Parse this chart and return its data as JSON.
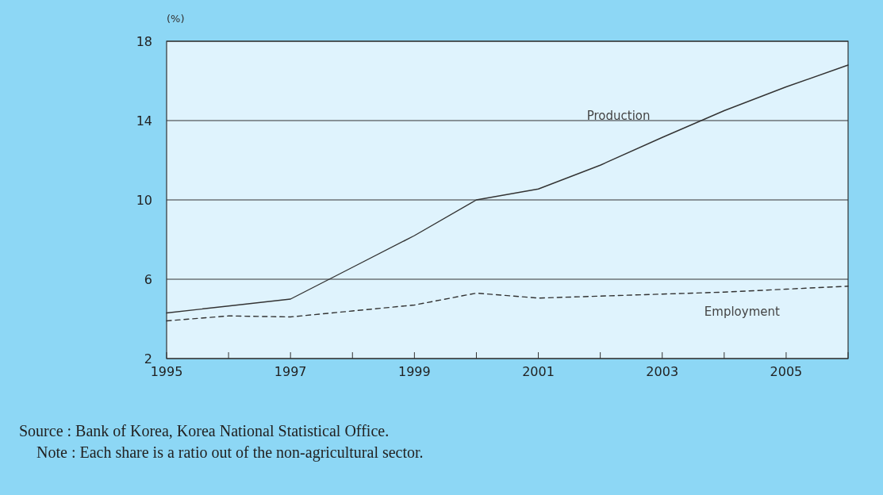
{
  "chart_data": {
    "type": "line",
    "ylabel": "(%)",
    "x": [
      1995,
      1996,
      1997,
      1998,
      1999,
      2000,
      2001,
      2002,
      2003,
      2004,
      2005,
      2006
    ],
    "xlim": [
      1995,
      2006
    ],
    "xticks": [
      1995,
      {
        "value": 1996,
        "label": null
      },
      1997,
      {
        "value": 1998,
        "label": null
      },
      1999,
      {
        "value": 2000,
        "label": null
      },
      2001,
      {
        "value": 2002,
        "label": null
      },
      2003,
      {
        "value": 2004,
        "label": null
      },
      2005,
      {
        "value": 2006,
        "label": null
      }
    ],
    "ylim": [
      2,
      18
    ],
    "yticks": [
      2,
      6,
      10,
      14,
      18
    ],
    "grid": "y",
    "legend": false,
    "series": [
      {
        "name": "Production",
        "color": "#333333",
        "line_style": "solid",
        "values": [
          4.3,
          4.65,
          5.0,
          6.6,
          8.2,
          10.0,
          10.55,
          11.75,
          13.15,
          14.5,
          15.7,
          16.8
        ]
      },
      {
        "name": "Employment",
        "color": "#333333",
        "line_style": "dashed",
        "values": [
          3.9,
          4.15,
          4.1,
          4.4,
          4.7,
          5.3,
          5.05,
          5.15,
          5.25,
          5.35,
          5.5,
          5.65
        ]
      }
    ],
    "annotations": [
      "Source : Bank of Korea, Korea National Statistical Office.",
      "Note : Each share is a ratio out of the non-agricultural sector."
    ]
  }
}
